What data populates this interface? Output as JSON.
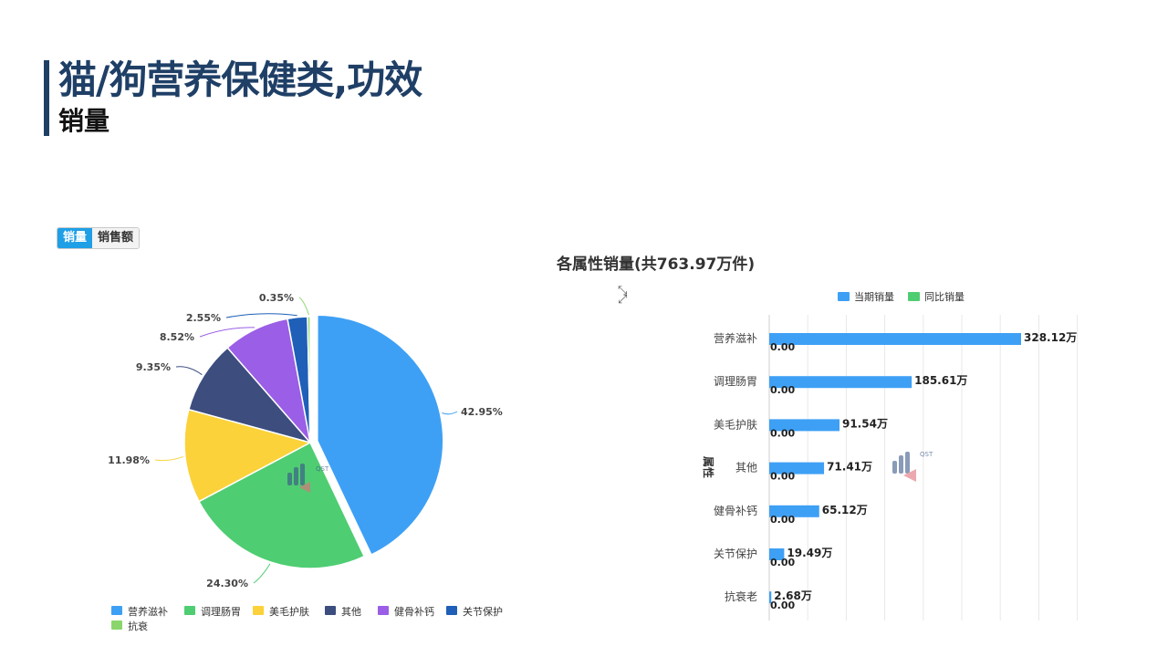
{
  "page": {
    "title": "猫/狗营养保健类,功效",
    "subtitle": "销量"
  },
  "toggle": {
    "active_label": "销量",
    "inactive_label": "销售额"
  },
  "icons": {
    "expand": "expand-icon"
  },
  "chart_data": [
    {
      "type": "pie",
      "labels": [
        "营养滋补",
        "调理肠胃",
        "美毛护肤",
        "其他",
        "健骨补钙",
        "关节保护",
        "抗衰老"
      ],
      "legend_entries": [
        "营养滋补",
        "调理肠胃",
        "美毛护肤",
        "其他",
        "健骨补钙",
        "关节保护",
        "抗衰"
      ],
      "values": [
        42.95,
        24.3,
        11.98,
        9.35,
        8.52,
        2.55,
        0.35
      ],
      "value_labels": [
        "42.95%",
        "24.30%",
        "11.98%",
        "9.35%",
        "8.52%",
        "2.55%",
        "0.35%"
      ],
      "colors": [
        "#3ea0f5",
        "#4fcd72",
        "#fbd23a",
        "#3c4d7e",
        "#9b5ee6",
        "#1f5fb8",
        "#8ad66c"
      ],
      "exploded_index": 0,
      "legend_position": "bottom",
      "watermark": "QST CHINA COM 情报通"
    },
    {
      "type": "bar",
      "orientation": "horizontal",
      "title": "各属性销量(共763.97万件)",
      "ylabel": "属性",
      "categories": [
        "营养滋补",
        "调理肠胃",
        "美毛护肤",
        "其他",
        "健骨补钙",
        "关节保护",
        "抗衰老"
      ],
      "series": [
        {
          "name": "当期销量",
          "color": "#3ea0f5",
          "values": [
            328.12,
            185.61,
            91.54,
            71.41,
            65.12,
            19.49,
            2.68
          ],
          "value_labels": [
            "328.12万",
            "185.61万",
            "91.54万",
            "71.41万",
            "65.12万",
            "19.49万",
            "2.68万"
          ]
        },
        {
          "name": "同比销量",
          "color": "#4fcd72",
          "values": [
            0,
            0,
            0,
            0,
            0,
            0,
            0
          ],
          "value_labels": [
            "0.00",
            "0.00",
            "0.00",
            "0.00",
            "0.00",
            "0.00",
            "0.00"
          ]
        }
      ],
      "xlim": [
        0,
        350
      ],
      "grid": true,
      "legend_position": "top",
      "watermark": "QST CHINA COM 情报通"
    }
  ]
}
